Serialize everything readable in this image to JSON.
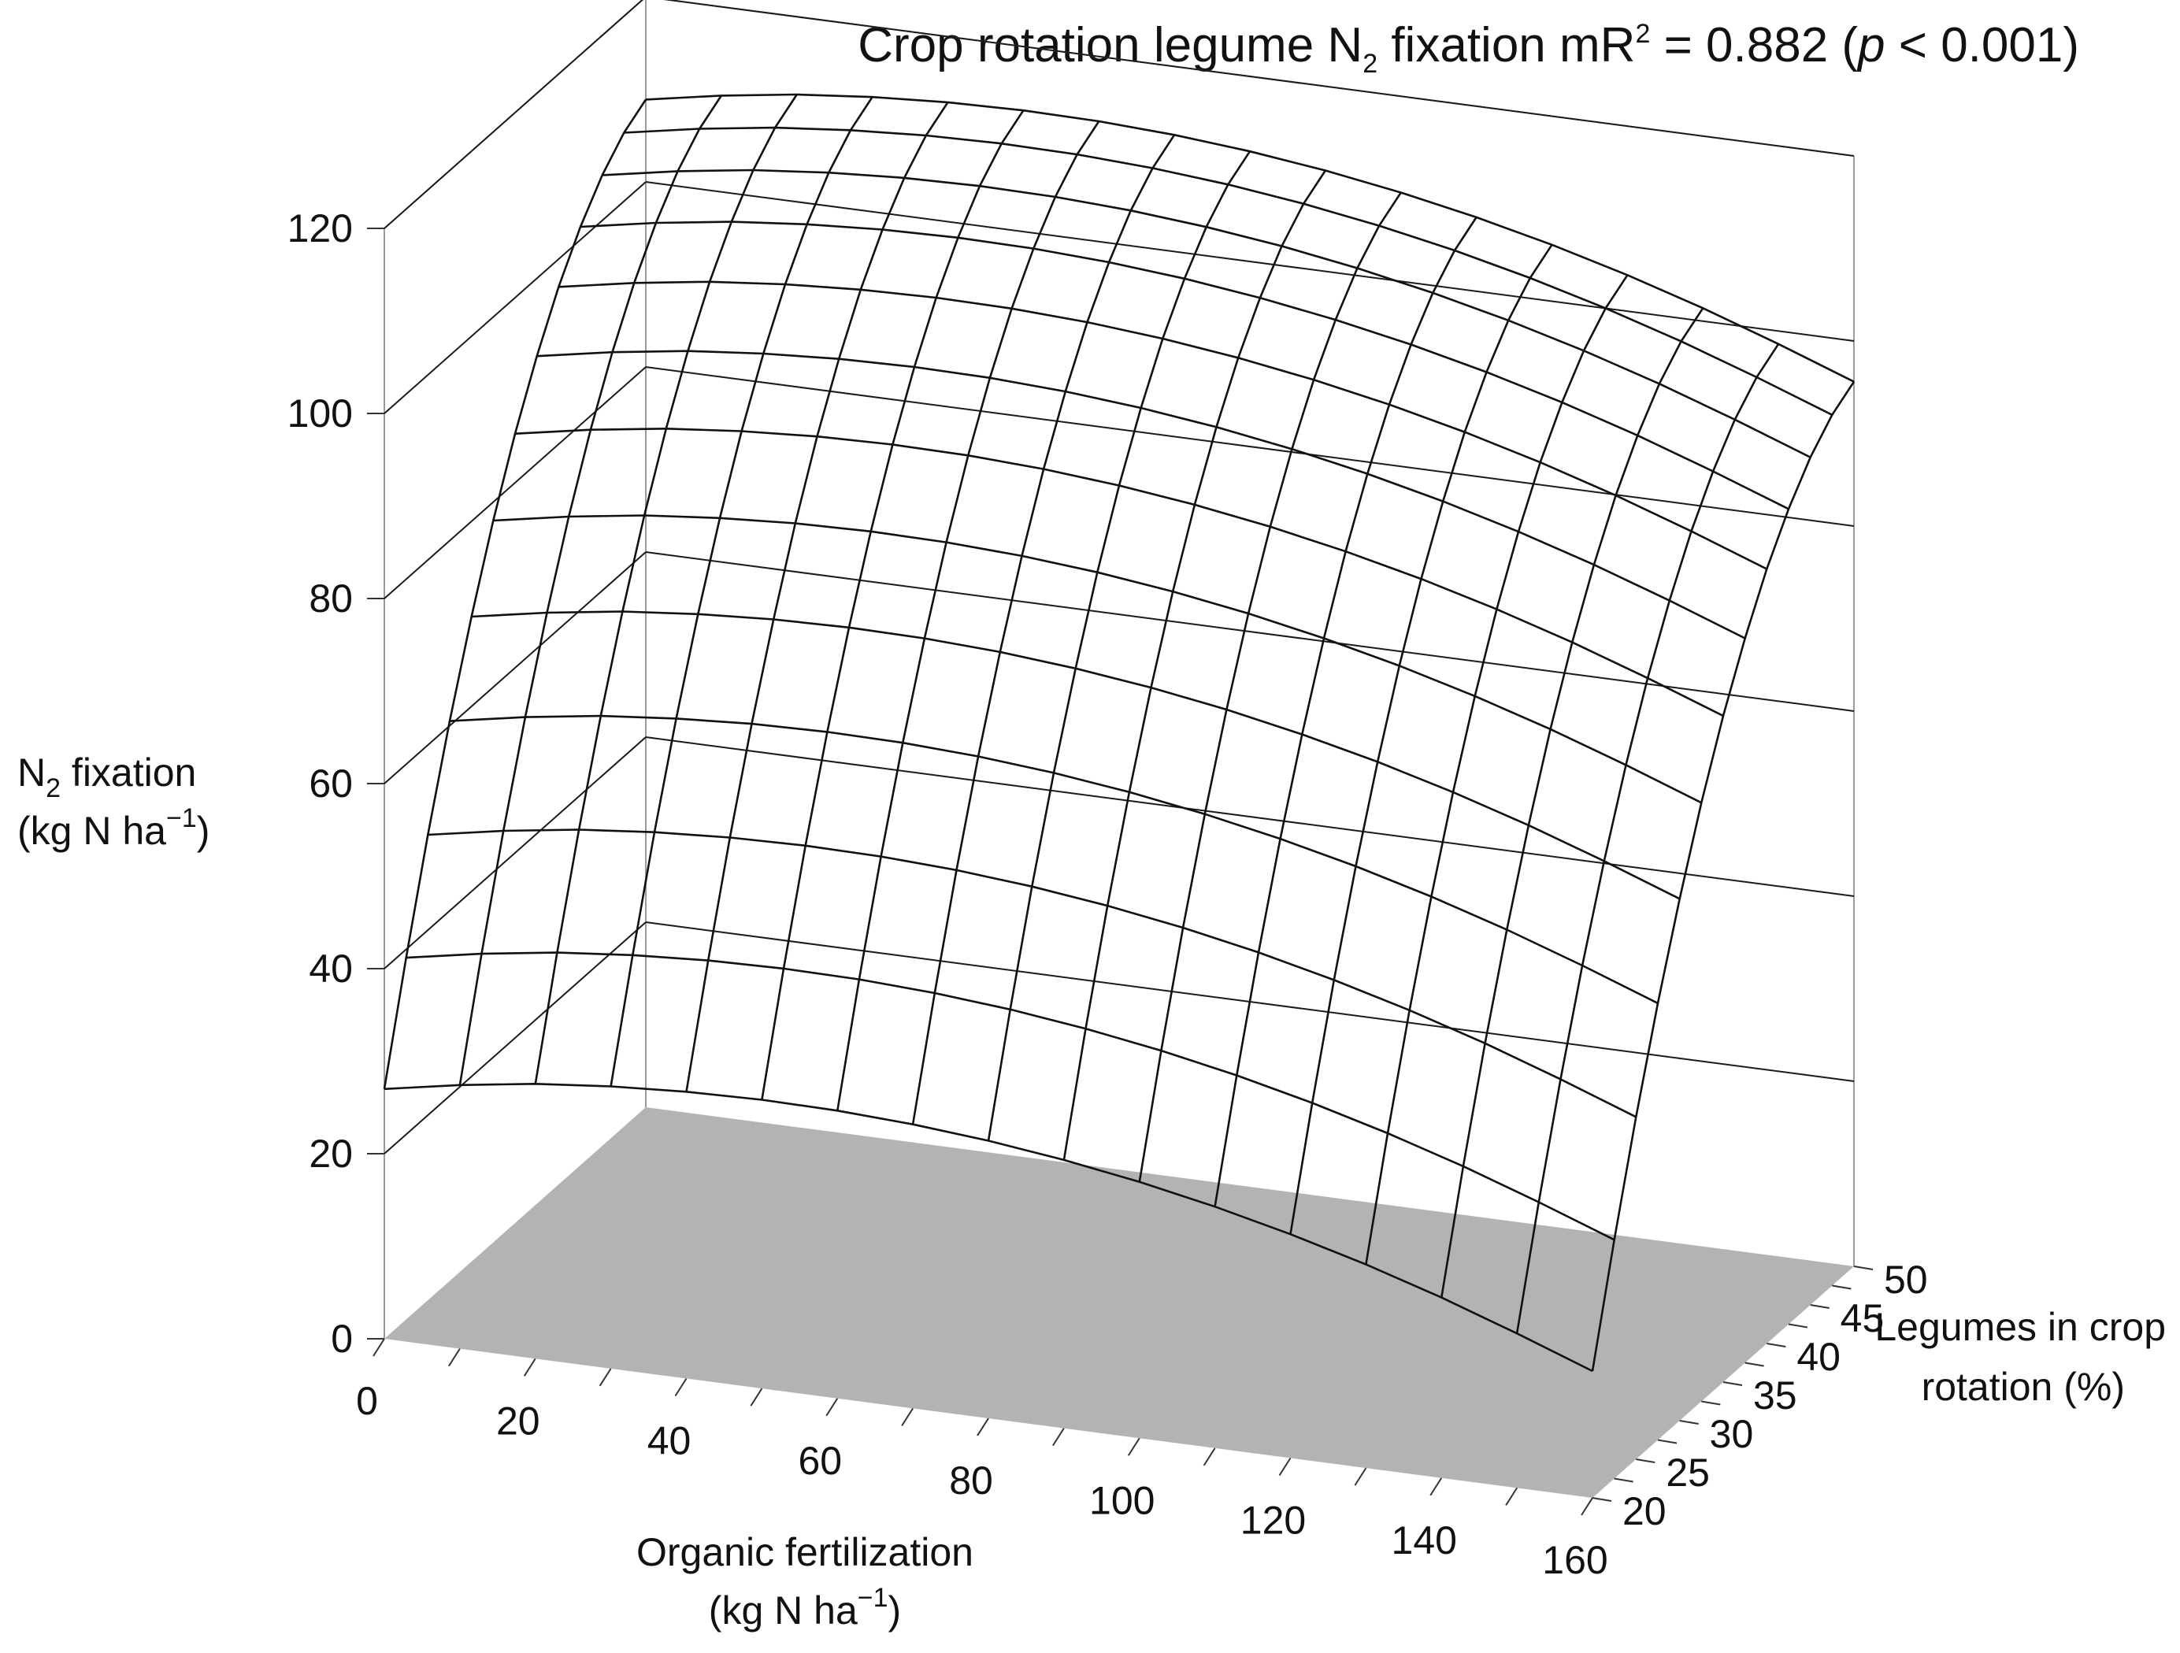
{
  "chart_data": {
    "type": "surface",
    "title": {
      "prefix": "Crop rotation legume N",
      "prefix_sub": "2",
      "middle": " fixation mR",
      "middle_sup": "2",
      "stat": " = 0.882 (",
      "p_symbol": "p",
      "suffix": " < 0.001)"
    },
    "z_axis": {
      "label_line1_main": "N",
      "label_line1_sub": "2",
      "label_line1_rest": " fixation",
      "label_line2_main": "(kg N ha",
      "label_line2_sup": "−1",
      "label_line2_end": ")",
      "range": [
        0,
        120
      ],
      "ticks": [
        "0",
        "20",
        "40",
        "60",
        "80",
        "100",
        "120"
      ]
    },
    "x_axis": {
      "label_line1": "Organic fertilization",
      "label_line2_main": "(kg N ha",
      "label_line2_sup": "−1",
      "label_line2_end": ")",
      "range": [
        0,
        160
      ],
      "ticks": [
        "0",
        "20",
        "40",
        "60",
        "80",
        "100",
        "120",
        "140",
        "160"
      ]
    },
    "y_axis": {
      "label_line1": "Legumes in crop",
      "label_line2": "rotation (%)",
      "range": [
        20,
        50
      ],
      "ticks": [
        "20",
        "25",
        "30",
        "35",
        "40",
        "45",
        "50"
      ]
    },
    "grid": true,
    "floor_color": "#b3b3b3",
    "line_color": "#111111",
    "x_grid": [
      0,
      10,
      20,
      30,
      40,
      50,
      60,
      70,
      80,
      90,
      100,
      110,
      120,
      130,
      140,
      150,
      160
    ],
    "y_grid": [
      20,
      22.5,
      25,
      27.5,
      30,
      32.5,
      35,
      37.5,
      40,
      42.5,
      45,
      47.5,
      50
    ],
    "z_values": [
      [
        27.0,
        28.5,
        29.7,
        30.5,
        31.0,
        31.2,
        31.1,
        30.7,
        30.0,
        29.0,
        27.7,
        26.1,
        24.2,
        22.0,
        19.5,
        16.7,
        13.7
      ],
      [
        39.1,
        40.6,
        41.8,
        42.6,
        43.1,
        43.3,
        43.2,
        42.8,
        42.1,
        41.1,
        39.8,
        38.2,
        36.3,
        34.1,
        31.6,
        28.8,
        25.8
      ],
      [
        50.3,
        51.8,
        53.0,
        53.8,
        54.3,
        54.5,
        54.4,
        54.0,
        53.3,
        52.3,
        51.0,
        49.4,
        47.5,
        45.3,
        42.8,
        40.0,
        37.0
      ],
      [
        60.5,
        62.0,
        63.2,
        64.0,
        64.5,
        64.7,
        64.6,
        64.2,
        63.5,
        62.5,
        61.2,
        59.6,
        57.7,
        55.5,
        53.0,
        50.2,
        47.2
      ],
      [
        69.7,
        71.2,
        72.4,
        73.2,
        73.7,
        73.9,
        73.8,
        73.4,
        72.7,
        71.7,
        70.4,
        68.8,
        66.9,
        64.7,
        62.2,
        59.4,
        56.4
      ],
      [
        78.0,
        79.5,
        80.7,
        81.5,
        82.0,
        82.2,
        82.1,
        81.7,
        81.0,
        80.0,
        78.7,
        77.1,
        75.2,
        73.0,
        70.5,
        67.7,
        64.7
      ],
      [
        85.3,
        86.8,
        88.0,
        88.8,
        89.3,
        89.5,
        89.4,
        89.0,
        88.3,
        87.3,
        86.0,
        84.4,
        82.5,
        80.3,
        77.8,
        75.0,
        72.0
      ],
      [
        91.6,
        93.1,
        94.3,
        95.1,
        95.6,
        95.8,
        95.7,
        95.3,
        94.6,
        93.6,
        92.3,
        90.7,
        88.8,
        86.6,
        84.1,
        81.3,
        78.3
      ],
      [
        97.0,
        98.5,
        99.7,
        100.5,
        101.0,
        101.2,
        101.1,
        100.7,
        100.0,
        99.0,
        97.7,
        96.1,
        94.2,
        92.0,
        89.5,
        86.7,
        83.7
      ],
      [
        101.4,
        102.9,
        104.1,
        104.9,
        105.4,
        105.6,
        105.5,
        105.1,
        104.4,
        103.4,
        102.1,
        100.5,
        98.6,
        96.4,
        93.9,
        91.1,
        88.1
      ],
      [
        104.9,
        106.4,
        107.6,
        108.4,
        108.9,
        109.1,
        109.0,
        108.6,
        107.9,
        106.9,
        105.6,
        104.0,
        102.1,
        99.9,
        97.4,
        94.6,
        91.6
      ],
      [
        107.4,
        108.9,
        110.1,
        110.9,
        111.4,
        111.6,
        111.5,
        111.1,
        110.4,
        109.4,
        108.1,
        106.5,
        104.6,
        102.4,
        99.9,
        97.1,
        94.1
      ],
      [
        108.9,
        110.4,
        111.6,
        112.4,
        112.9,
        113.1,
        113.0,
        112.6,
        111.9,
        110.9,
        109.6,
        108.0,
        106.1,
        103.9,
        101.4,
        98.6,
        95.6
      ]
    ]
  }
}
